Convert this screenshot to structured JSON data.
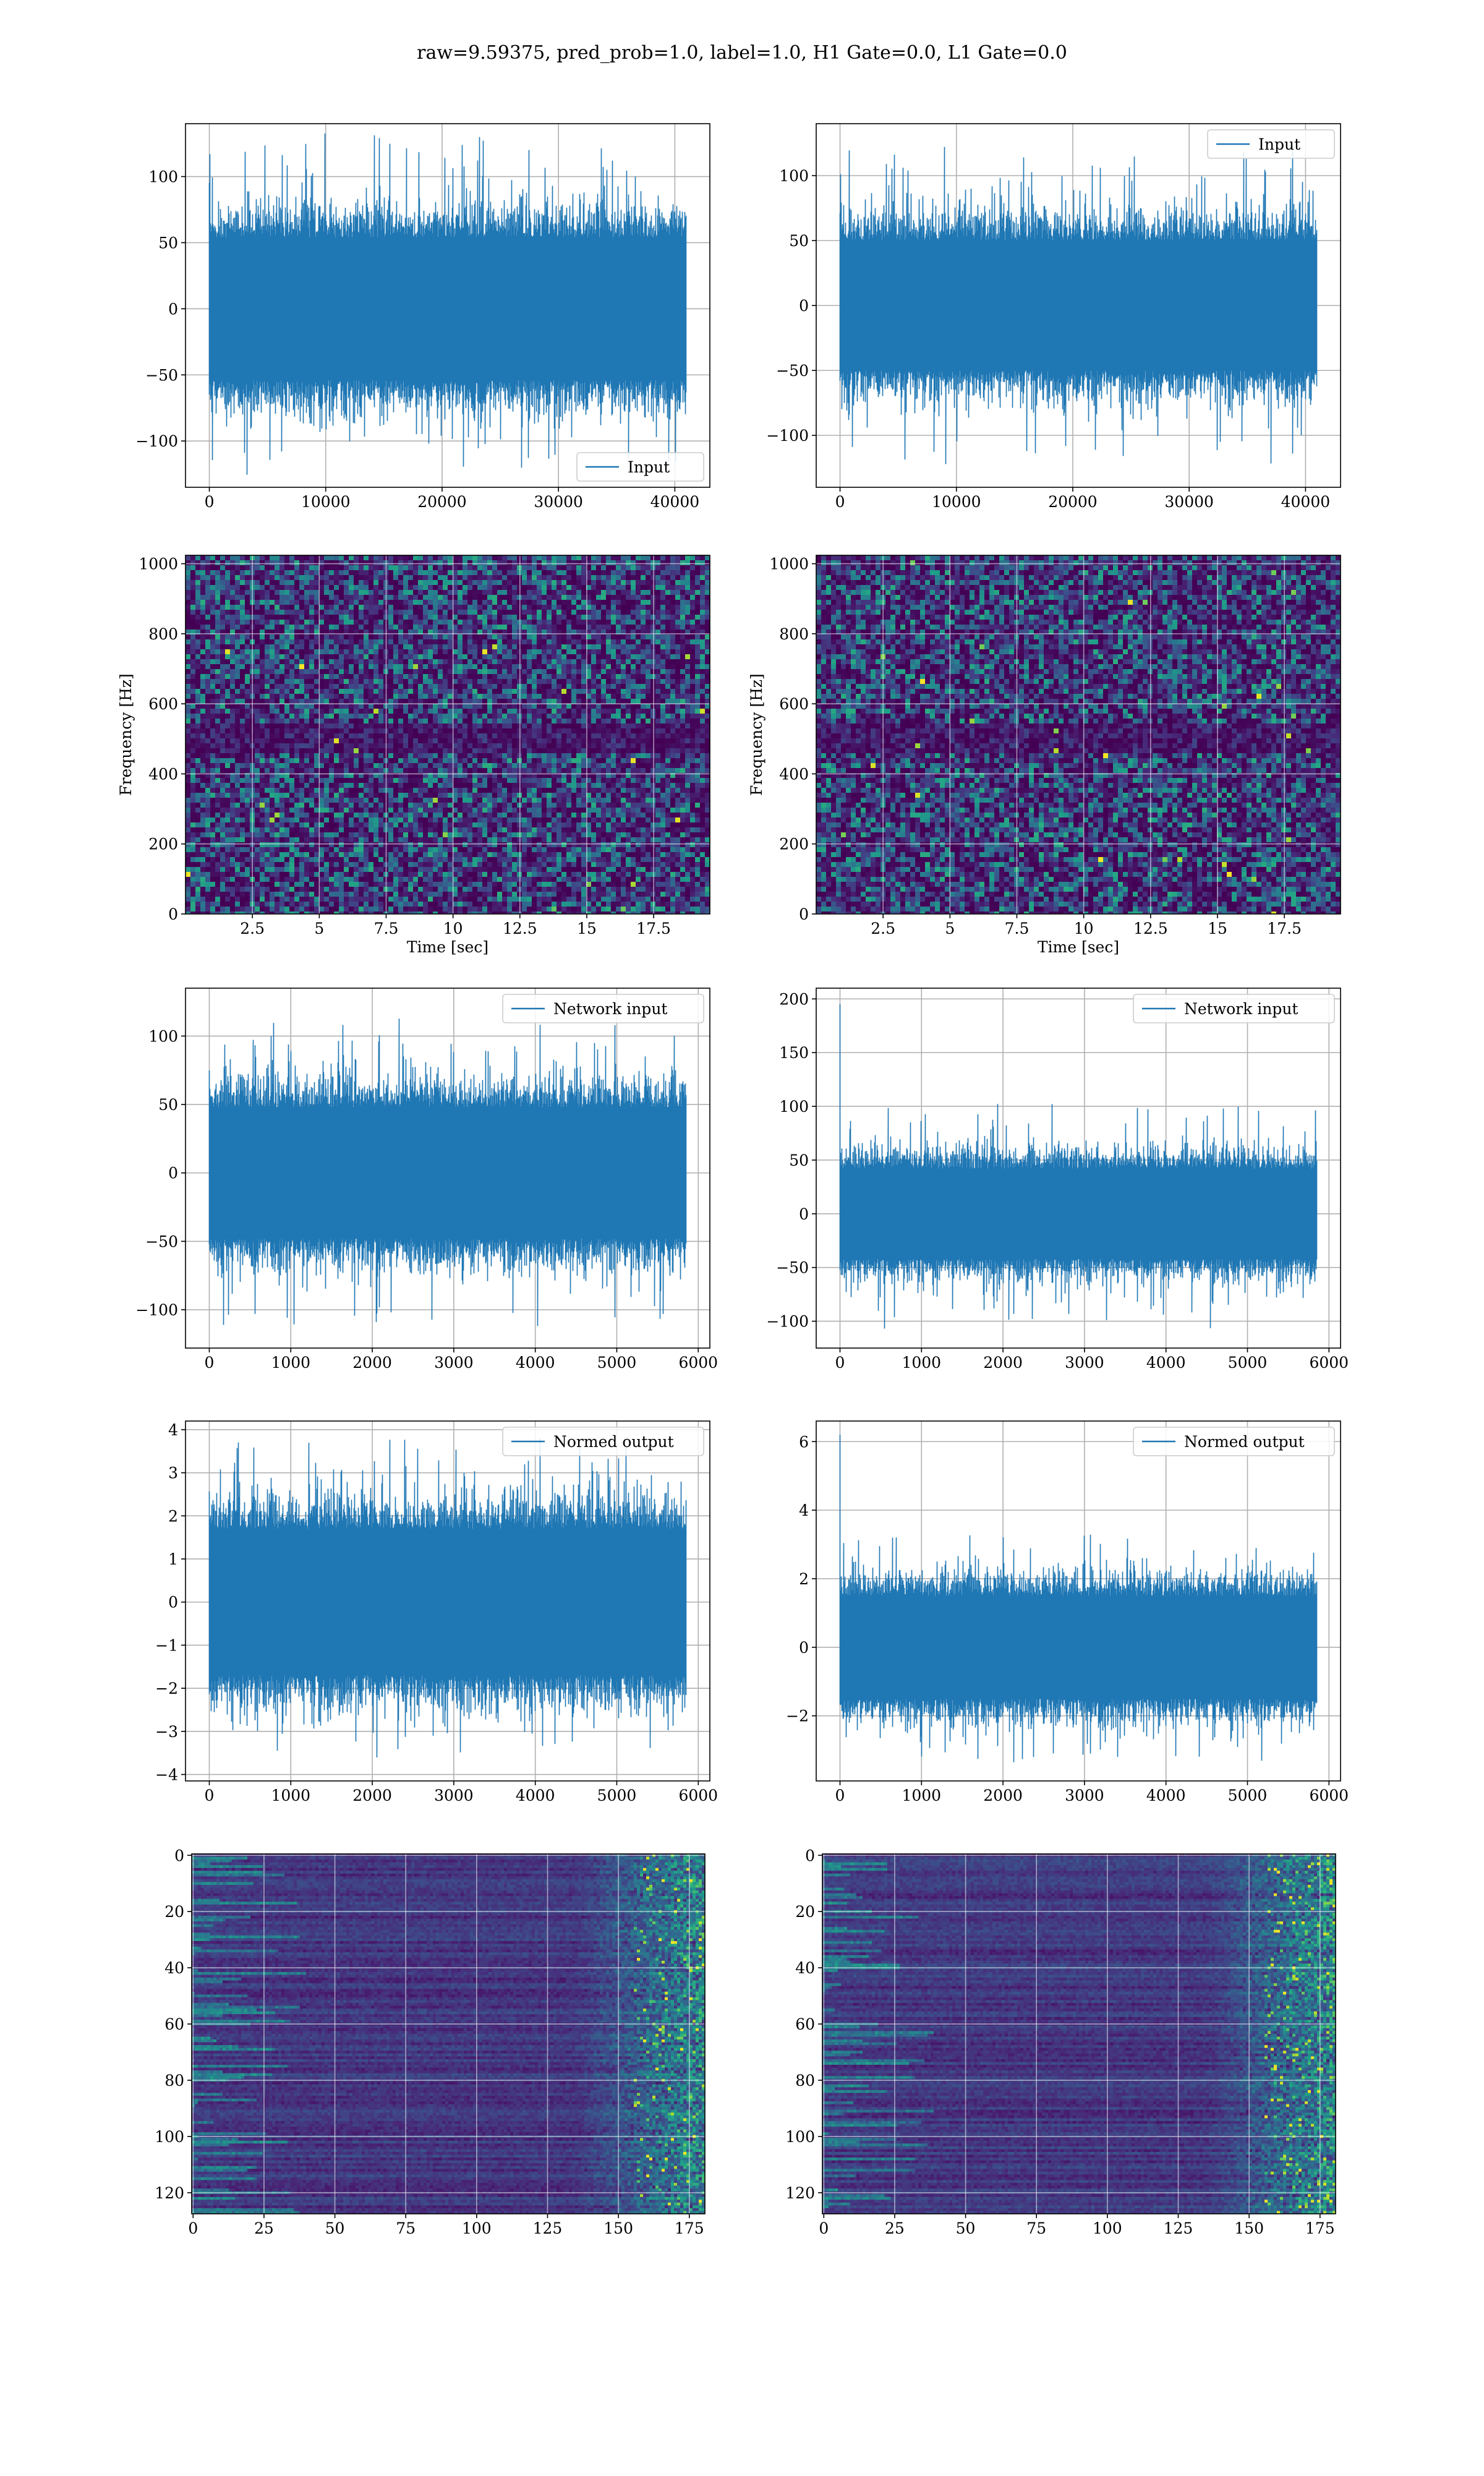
{
  "suptitle": "raw=9.59375, pred_prob=1.0, label=1.0, H1 Gate=0.0, L1 Gate=0.0",
  "colors": {
    "line": "#1f77b4",
    "grid": "#b0b0b0",
    "viridis_dark": "#440154",
    "viridis_mid": "#3b528b",
    "viridis_teal": "#21918c",
    "viridis_green": "#5ec962",
    "viridis_yellow": "#fde725"
  },
  "chart_data": [
    {
      "id": "p1",
      "type": "line",
      "signal": "noise",
      "series": [
        {
          "name": "Input",
          "n_points": 40960
        }
      ],
      "xlim": [
        -2048,
        43008
      ],
      "ylim": [
        -135,
        140
      ],
      "grid": true,
      "legend": "lower right",
      "xticks": [
        0,
        10000,
        20000,
        30000,
        40000
      ],
      "yticks": [
        -100,
        -50,
        0,
        50,
        100
      ],
      "amplitude": {
        "sigma": 27,
        "max": 133,
        "min": -127
      }
    },
    {
      "id": "p2",
      "type": "line",
      "signal": "noise",
      "series": [
        {
          "name": "Input",
          "n_points": 40960
        }
      ],
      "xlim": [
        -2048,
        43008
      ],
      "ylim": [
        -140,
        140
      ],
      "grid": true,
      "legend": "upper right",
      "xticks": [
        0,
        10000,
        20000,
        30000,
        40000
      ],
      "yticks": [
        -100,
        -50,
        0,
        50,
        100
      ],
      "amplitude": {
        "sigma": 25,
        "max": 125,
        "min": -124
      }
    },
    {
      "id": "p3",
      "type": "heatmap",
      "style": "spectrogram",
      "xlim": [
        0,
        19.6
      ],
      "ylim": [
        0,
        1024
      ],
      "grid": true,
      "xticks": [
        2.5,
        5.0,
        7.5,
        10.0,
        12.5,
        15.0,
        17.5
      ],
      "yticks": [
        0,
        200,
        400,
        600,
        800,
        1000
      ],
      "xlabel": "Time [sec]",
      "ylabel": "Frequency [Hz]"
    },
    {
      "id": "p4",
      "type": "heatmap",
      "style": "spectrogram",
      "xlim": [
        0,
        19.6
      ],
      "ylim": [
        0,
        1024
      ],
      "grid": true,
      "xticks": [
        2.5,
        5.0,
        7.5,
        10.0,
        12.5,
        15.0,
        17.5
      ],
      "yticks": [
        0,
        200,
        400,
        600,
        800,
        1000
      ],
      "xlabel": "Time [sec]",
      "ylabel": "Frequency [Hz]"
    },
    {
      "id": "p5",
      "type": "line",
      "signal": "noise",
      "series": [
        {
          "name": "Network input",
          "n_points": 5850
        }
      ],
      "xlim": [
        -292,
        6142
      ],
      "ylim": [
        -128,
        135
      ],
      "grid": true,
      "legend": "upper right",
      "xticks": [
        0,
        1000,
        2000,
        3000,
        4000,
        5000,
        6000
      ],
      "yticks": [
        -100,
        -50,
        0,
        50,
        100
      ],
      "amplitude": {
        "sigma": 24,
        "max": 113,
        "min": -116
      }
    },
    {
      "id": "p6",
      "type": "line",
      "signal": "noise",
      "series": [
        {
          "name": "Network input",
          "n_points": 5850
        }
      ],
      "xlim": [
        -292,
        6142
      ],
      "ylim": [
        -125,
        210
      ],
      "grid": true,
      "legend": "upper right",
      "xticks": [
        0,
        1000,
        2000,
        3000,
        4000,
        5000,
        6000
      ],
      "yticks": [
        -100,
        -50,
        0,
        50,
        100,
        150,
        200
      ],
      "amplitude": {
        "sigma": 21,
        "max": 104,
        "min": -110,
        "spike_value": 195
      }
    },
    {
      "id": "p7",
      "type": "line",
      "signal": "noise",
      "series": [
        {
          "name": "Normed output",
          "n_points": 5850
        }
      ],
      "xlim": [
        -292,
        6142
      ],
      "ylim": [
        -4.15,
        4.2
      ],
      "grid": true,
      "legend": "upper right",
      "xticks": [
        0,
        1000,
        2000,
        3000,
        4000,
        5000,
        6000
      ],
      "yticks": [
        -4,
        -3,
        -2,
        -1,
        0,
        1,
        2,
        3,
        4
      ],
      "amplitude": {
        "sigma": 0.85,
        "max": 3.85,
        "min": -3.7
      }
    },
    {
      "id": "p8",
      "type": "line",
      "signal": "noise",
      "series": [
        {
          "name": "Normed output",
          "n_points": 5850
        }
      ],
      "xlim": [
        -292,
        6142
      ],
      "ylim": [
        -3.9,
        6.6
      ],
      "grid": true,
      "legend": "upper right",
      "xticks": [
        0,
        1000,
        2000,
        3000,
        4000,
        5000,
        6000
      ],
      "yticks": [
        -2,
        0,
        2,
        4,
        6
      ],
      "amplitude": {
        "sigma": 0.75,
        "max": 3.3,
        "min": -3.4,
        "spike_value": 6.2
      }
    },
    {
      "id": "p9",
      "type": "heatmap",
      "style": "activation",
      "xlim": [
        -0.5,
        180.5
      ],
      "ylim": [
        127.5,
        -0.5
      ],
      "grid": true,
      "xticks": [
        0,
        25,
        50,
        75,
        100,
        125,
        150,
        175
      ],
      "yticks": [
        0,
        20,
        40,
        60,
        80,
        100,
        120
      ]
    },
    {
      "id": "p10",
      "type": "heatmap",
      "style": "activation",
      "xlim": [
        -0.5,
        180.5
      ],
      "ylim": [
        127.5,
        -0.5
      ],
      "grid": true,
      "xticks": [
        0,
        25,
        50,
        75,
        100,
        125,
        150,
        175
      ],
      "yticks": [
        0,
        20,
        40,
        60,
        80,
        100,
        120
      ]
    }
  ]
}
